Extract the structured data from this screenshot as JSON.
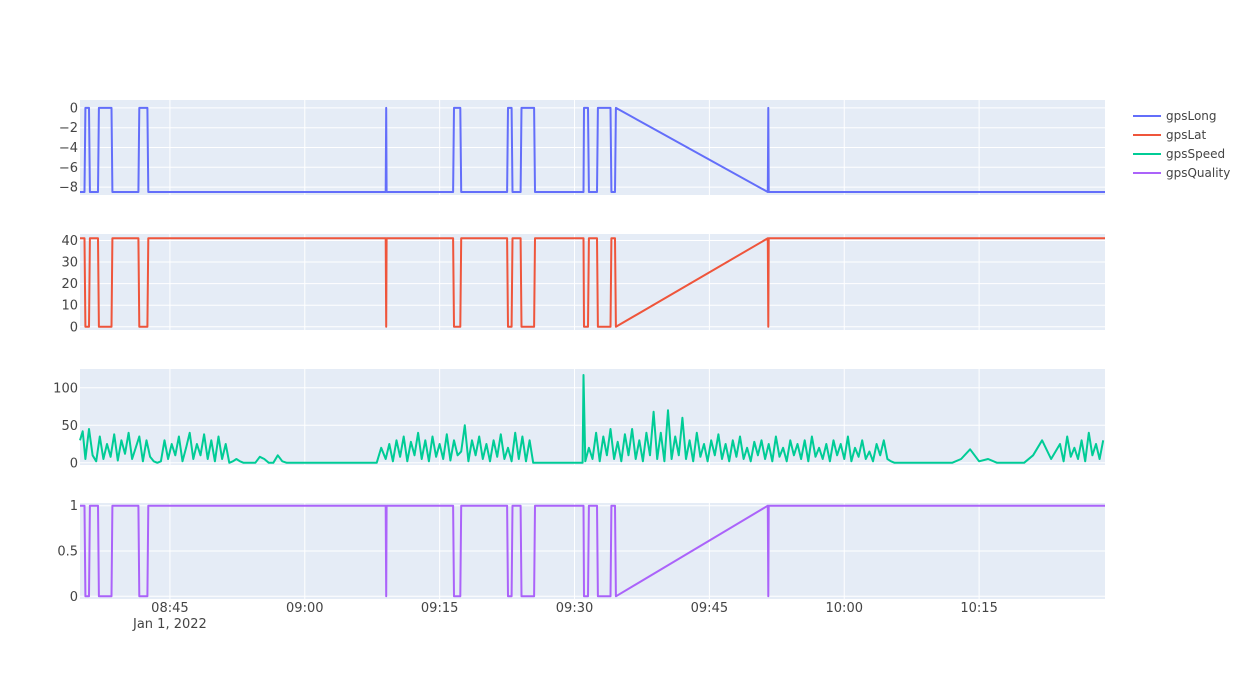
{
  "chart_data": [
    {
      "type": "line",
      "name": "gpsLong",
      "color": "#636efa",
      "ylim": [
        -8.8,
        0.8
      ],
      "yticks": [
        0,
        -2,
        -4,
        -6,
        -8
      ],
      "ytick_labels": [
        "0",
        "−2",
        "−4",
        "−6",
        "−8"
      ],
      "x": [
        "08:35",
        "08:35.5",
        "08:35.6",
        "08:36",
        "08:36.1",
        "08:37",
        "08:37.1",
        "08:38.5",
        "08:38.6",
        "08:41.5",
        "08:41.6",
        "08:42.5",
        "08:42.6",
        "09:09",
        "09:09.05",
        "09:09.1",
        "09:16.5",
        "09:16.6",
        "09:17.3",
        "09:17.4",
        "09:22.5",
        "09:22.6",
        "09:23",
        "09:23.1",
        "09:24",
        "09:24.1",
        "09:25.5",
        "09:25.6",
        "09:31",
        "09:31.05",
        "09:31.5",
        "09:31.6",
        "09:32.5",
        "09:32.6",
        "09:34",
        "09:34.1",
        "09:34.5",
        "09:34.6",
        "09:51.5",
        "09:51.55",
        "09:51.6",
        "10:29"
      ],
      "values": [
        -8.5,
        -8.5,
        0,
        0,
        -8.5,
        -8.5,
        0,
        0,
        -8.5,
        -8.5,
        0,
        0,
        -8.5,
        -8.5,
        0,
        -8.5,
        -8.5,
        0,
        0,
        -8.5,
        -8.5,
        0,
        0,
        -8.5,
        -8.5,
        0,
        0,
        -8.5,
        -8.5,
        0,
        0,
        -8.5,
        -8.5,
        0,
        0,
        -8.5,
        -8.5,
        0,
        -8.5,
        0,
        -8.5,
        -8.5
      ]
    },
    {
      "type": "line",
      "name": "gpsLat",
      "color": "#ef553b",
      "ylim": [
        -1.5,
        43
      ],
      "yticks": [
        0,
        10,
        20,
        30,
        40
      ],
      "ytick_labels": [
        "0",
        "10",
        "20",
        "30",
        "40"
      ],
      "x": [
        "08:35",
        "08:35.5",
        "08:35.6",
        "08:36",
        "08:36.1",
        "08:37",
        "08:37.1",
        "08:38.5",
        "08:38.6",
        "08:41.5",
        "08:41.6",
        "08:42.5",
        "08:42.6",
        "09:09",
        "09:09.05",
        "09:09.1",
        "09:16.5",
        "09:16.6",
        "09:17.3",
        "09:17.4",
        "09:22.5",
        "09:22.6",
        "09:23",
        "09:23.1",
        "09:24",
        "09:24.1",
        "09:25.5",
        "09:25.6",
        "09:31",
        "09:31.05",
        "09:31.5",
        "09:31.6",
        "09:32.5",
        "09:32.6",
        "09:34",
        "09:34.1",
        "09:34.5",
        "09:34.6",
        "09:51.5",
        "09:51.55",
        "09:51.6",
        "10:29"
      ],
      "values": [
        41,
        41,
        0,
        0,
        41,
        41,
        0,
        0,
        41,
        41,
        0,
        0,
        41,
        41,
        0,
        41,
        41,
        0,
        0,
        41,
        41,
        0,
        0,
        41,
        41,
        0,
        0,
        41,
        41,
        0,
        0,
        41,
        41,
        0,
        0,
        41,
        41,
        0,
        41,
        0,
        41,
        41
      ]
    },
    {
      "type": "line",
      "name": "gpsSpeed",
      "color": "#00cc96",
      "ylim": [
        -3,
        125
      ],
      "yticks": [
        0,
        50,
        100
      ],
      "ytick_labels": [
        "0",
        "50",
        "100"
      ],
      "x_range_min": 515,
      "x_range_max": 629,
      "values_profile": "oscillating speed trace between 0 and ~45 with a spike to 117 near 09:31 and peaks ~70 near 09:42"
    },
    {
      "type": "line",
      "name": "gpsQuality",
      "color": "#ab63fa",
      "ylim": [
        -0.03,
        1.03
      ],
      "yticks": [
        0,
        0.5,
        1
      ],
      "ytick_labels": [
        "0",
        "0.5",
        "1"
      ],
      "x": [
        "08:35",
        "08:35.5",
        "08:35.6",
        "08:36",
        "08:36.1",
        "08:37",
        "08:37.1",
        "08:38.5",
        "08:38.6",
        "08:41.5",
        "08:41.6",
        "08:42.5",
        "08:42.6",
        "09:09",
        "09:09.05",
        "09:09.1",
        "09:16.5",
        "09:16.6",
        "09:17.3",
        "09:17.4",
        "09:22.5",
        "09:22.6",
        "09:23",
        "09:23.1",
        "09:24",
        "09:24.1",
        "09:25.5",
        "09:25.6",
        "09:31",
        "09:31.05",
        "09:31.5",
        "09:31.6",
        "09:32.5",
        "09:32.6",
        "09:34",
        "09:34.1",
        "09:34.5",
        "09:34.6",
        "09:51.5",
        "09:51.55",
        "09:51.6",
        "10:29"
      ],
      "values": [
        1,
        1,
        0,
        0,
        1,
        1,
        0,
        0,
        1,
        1,
        0,
        0,
        1,
        1,
        0,
        1,
        1,
        0,
        0,
        1,
        1,
        0,
        0,
        1,
        1,
        0,
        0,
        1,
        1,
        0,
        0,
        1,
        1,
        0,
        0,
        1,
        1,
        0,
        1,
        0,
        1,
        1
      ]
    }
  ],
  "xaxis": {
    "ticks": [
      "08:45",
      "09:00",
      "09:15",
      "09:30",
      "09:45",
      "10:00",
      "10:15"
    ],
    "tick_minutes": [
      525,
      540,
      555,
      570,
      585,
      600,
      615
    ],
    "date_label": "Jan 1, 2022",
    "xlim_minutes": [
      515,
      629
    ]
  },
  "legend": {
    "placement": "top-right",
    "items": [
      {
        "name": "gpsLong",
        "color": "#636efa"
      },
      {
        "name": "gpsLat",
        "color": "#ef553b"
      },
      {
        "name": "gpsSpeed",
        "color": "#00cc96"
      },
      {
        "name": "gpsQuality",
        "color": "#ab63fa"
      }
    ]
  },
  "colors": {
    "plot_bg": "#e5ecf6",
    "grid": "#ffffff"
  },
  "speed_series": {
    "t": [
      515,
      515.3,
      515.6,
      516,
      516.4,
      516.8,
      517.2,
      517.6,
      518,
      518.4,
      518.8,
      519.2,
      519.6,
      520,
      520.4,
      520.8,
      521.2,
      521.6,
      522,
      522.4,
      522.8,
      523.2,
      523.6,
      524,
      524.4,
      524.8,
      525.2,
      525.6,
      526,
      526.4,
      526.8,
      527.2,
      527.6,
      528,
      528.4,
      528.8,
      529.2,
      529.6,
      530,
      530.4,
      530.8,
      531.2,
      531.6,
      532,
      532.4,
      532.8,
      533.2,
      533.6,
      534,
      534.5,
      535,
      535.5,
      536,
      536.5,
      537,
      537.5,
      538,
      538.5,
      539,
      540,
      541,
      542,
      543,
      544,
      545,
      546,
      547,
      548,
      548.5,
      549,
      549.4,
      549.8,
      550.2,
      550.6,
      551,
      551.4,
      551.8,
      552.2,
      552.6,
      553,
      553.4,
      553.8,
      554.2,
      554.6,
      555,
      555.4,
      555.8,
      556.2,
      556.6,
      557,
      557.4,
      557.8,
      558.2,
      558.6,
      559,
      559.4,
      559.8,
      560.2,
      560.6,
      561,
      561.4,
      561.8,
      562.2,
      562.6,
      563,
      563.4,
      563.8,
      564.2,
      564.6,
      565,
      565.4,
      565.8,
      566,
      567,
      568,
      569,
      570,
      570.5,
      570.9,
      571,
      571.2,
      571.6,
      572,
      572.4,
      572.8,
      573.2,
      573.6,
      574,
      574.4,
      574.8,
      575.2,
      575.6,
      576,
      576.4,
      576.8,
      577.2,
      577.6,
      578,
      578.4,
      578.8,
      579.2,
      579.6,
      580,
      580.4,
      580.8,
      581.2,
      581.6,
      582,
      582.4,
      582.8,
      583.2,
      583.6,
      584,
      584.4,
      584.8,
      585.2,
      585.6,
      586,
      586.4,
      586.8,
      587.2,
      587.6,
      588,
      588.4,
      588.8,
      589.2,
      589.6,
      590,
      590.4,
      590.8,
      591.2,
      591.6,
      592,
      592.4,
      592.8,
      593.2,
      593.6,
      594,
      594.4,
      594.8,
      595.2,
      595.6,
      596,
      596.4,
      596.8,
      597.2,
      597.6,
      598,
      598.4,
      598.8,
      599.2,
      599.6,
      600,
      600.4,
      600.8,
      601.2,
      601.6,
      602,
      602.4,
      602.8,
      603.2,
      603.6,
      604,
      604.4,
      604.8,
      605.2,
      605.6,
      606,
      606.4,
      606.8,
      607.2,
      607.6,
      608,
      608.4,
      608.8,
      609.2,
      609.6,
      610,
      611,
      612,
      613,
      614,
      615,
      616,
      617,
      618,
      618.5,
      619,
      619.5,
      620,
      621,
      622,
      623,
      624,
      624.4,
      624.8,
      625.2,
      625.6,
      626,
      626.4,
      626.8,
      627.2,
      627.6,
      628,
      628.4,
      628.8,
      629
    ],
    "v": [
      30,
      42,
      5,
      45,
      10,
      2,
      35,
      5,
      25,
      8,
      38,
      3,
      30,
      12,
      40,
      5,
      20,
      35,
      2,
      30,
      8,
      2,
      0,
      2,
      30,
      5,
      25,
      10,
      35,
      2,
      20,
      40,
      5,
      25,
      10,
      38,
      5,
      30,
      2,
      35,
      5,
      25,
      0,
      2,
      5,
      2,
      0,
      0,
      0,
      0,
      8,
      5,
      0,
      0,
      10,
      2,
      0,
      0,
      0,
      0,
      0,
      0,
      0,
      0,
      0,
      0,
      0,
      0,
      20,
      5,
      25,
      2,
      30,
      8,
      35,
      2,
      28,
      10,
      40,
      5,
      30,
      2,
      35,
      8,
      25,
      5,
      38,
      3,
      30,
      10,
      15,
      50,
      2,
      30,
      10,
      35,
      5,
      25,
      2,
      30,
      8,
      38,
      5,
      20,
      2,
      40,
      5,
      35,
      2,
      30,
      0,
      0,
      0,
      0,
      0,
      0,
      0,
      0,
      0,
      117,
      2,
      20,
      5,
      40,
      2,
      35,
      10,
      45,
      5,
      28,
      2,
      38,
      10,
      45,
      5,
      30,
      2,
      40,
      10,
      68,
      5,
      40,
      2,
      70,
      5,
      35,
      10,
      60,
      5,
      30,
      2,
      40,
      8,
      25,
      2,
      30,
      10,
      38,
      5,
      25,
      2,
      30,
      8,
      35,
      5,
      20,
      2,
      28,
      10,
      30,
      5,
      25,
      2,
      35,
      8,
      20,
      2,
      30,
      10,
      25,
      5,
      30,
      2,
      35,
      8,
      20,
      5,
      25,
      2,
      30,
      10,
      25,
      5,
      35,
      2,
      20,
      8,
      30,
      5,
      15,
      2,
      25,
      10,
      30,
      5,
      2,
      0,
      0,
      0,
      0,
      0,
      0,
      0,
      0,
      0,
      0,
      0,
      0,
      0,
      0,
      5,
      18,
      2,
      5,
      0,
      0,
      0,
      0,
      0,
      0,
      10,
      30,
      5,
      25,
      2,
      35,
      8,
      20,
      5,
      30,
      2,
      40,
      10,
      25,
      5,
      30
    ]
  }
}
